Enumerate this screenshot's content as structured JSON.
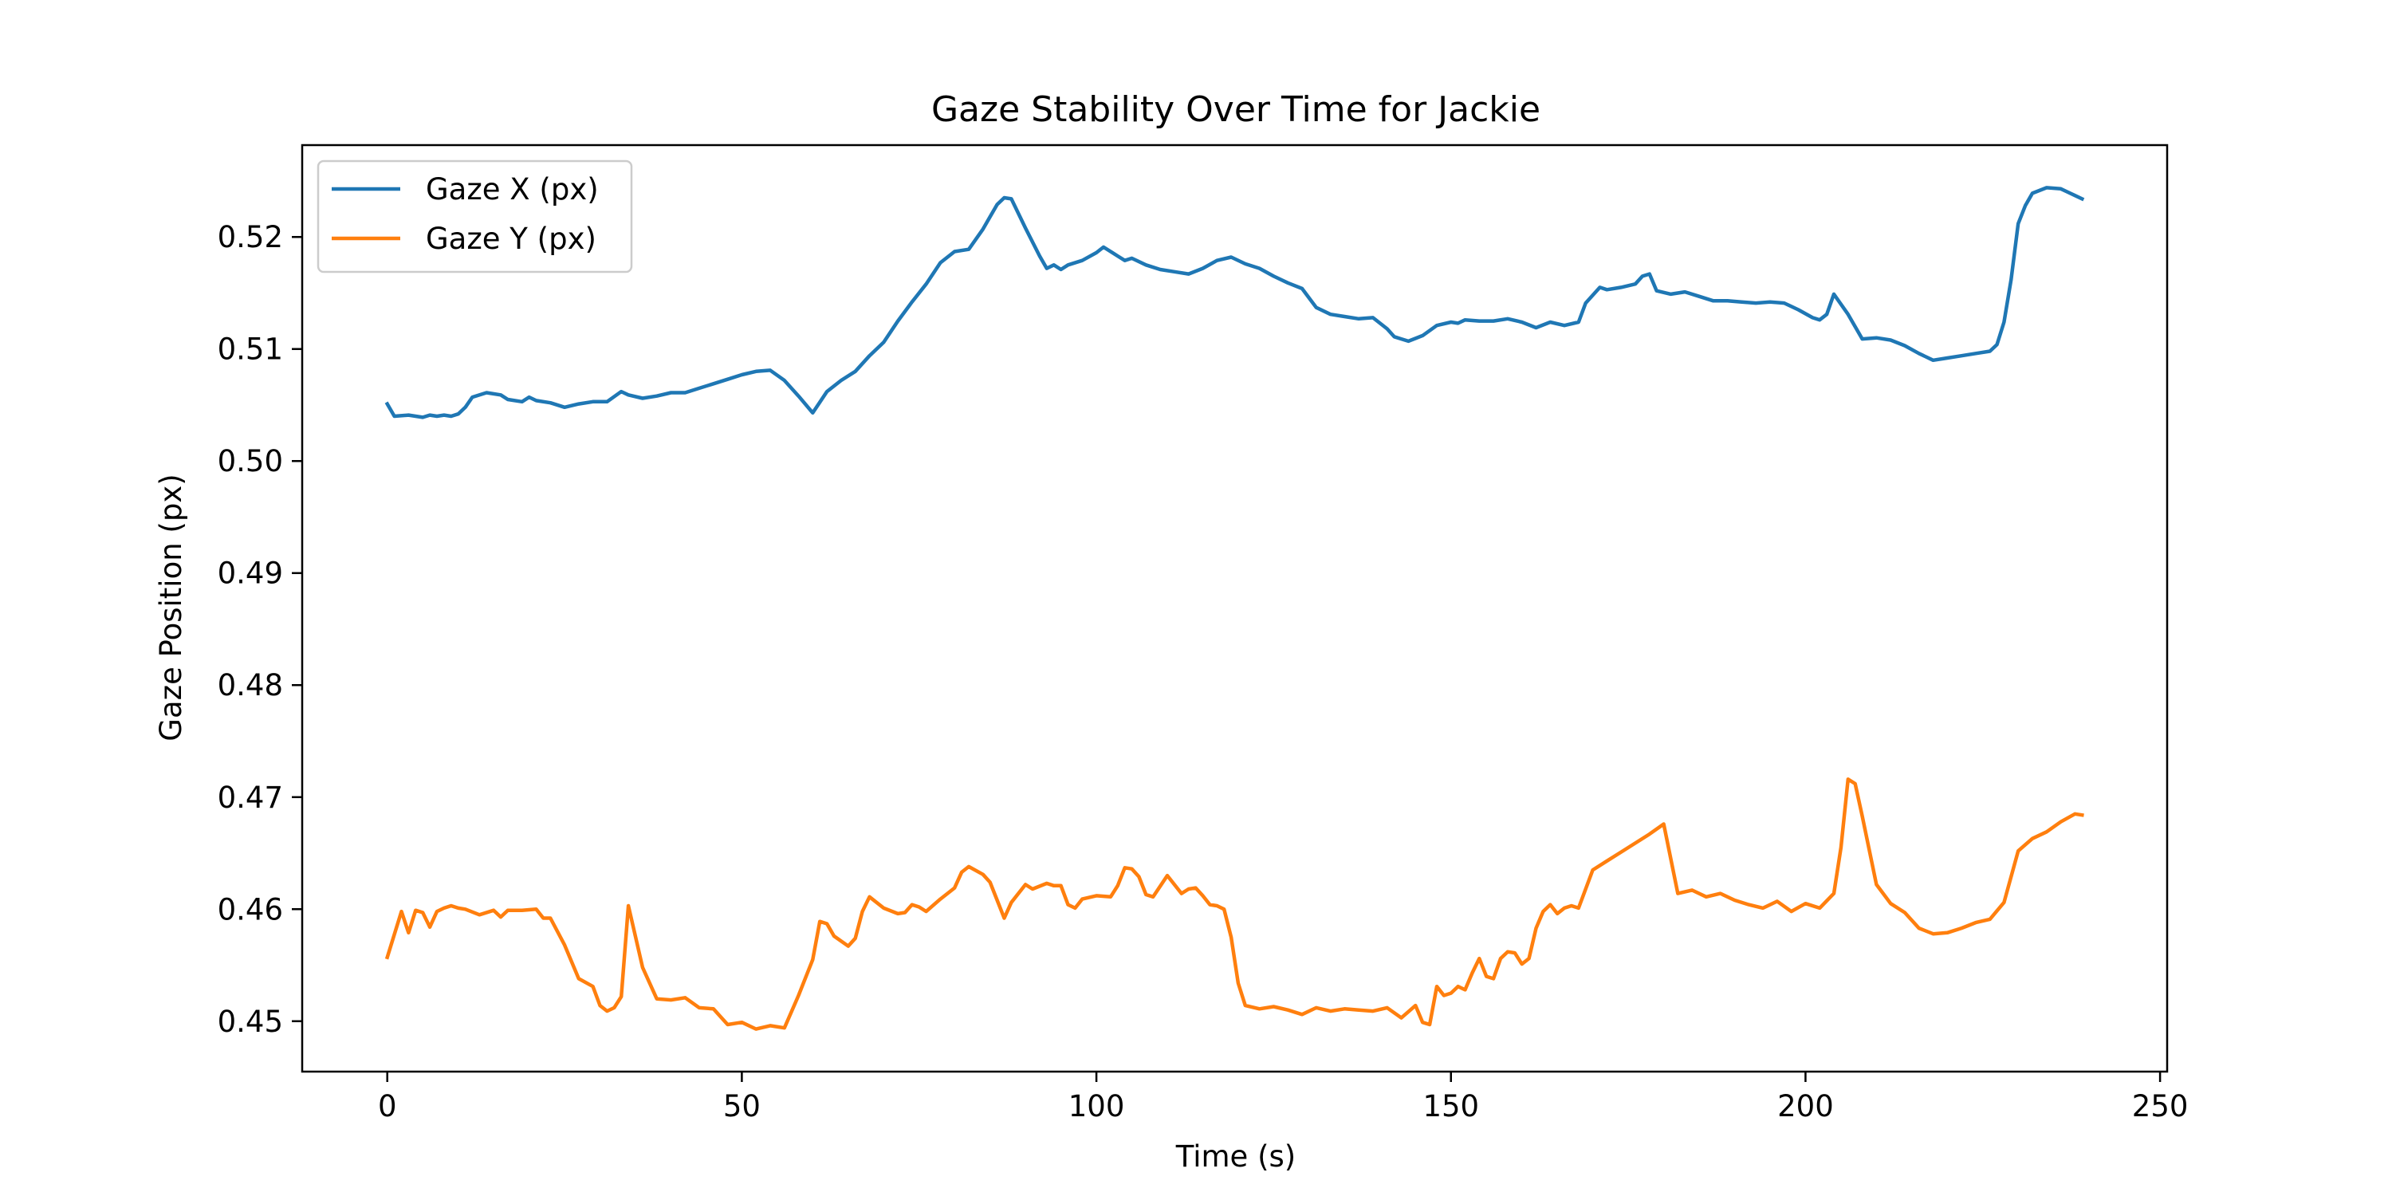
{
  "chart_data": {
    "type": "line",
    "title": "Gaze Stability Over Time for Jackie",
    "xlabel": "Time (s)",
    "ylabel": "Gaze Position (px)",
    "xlim": [
      -12,
      251
    ],
    "ylim": [
      0.4455,
      0.5282
    ],
    "xticks": [
      0,
      50,
      100,
      150,
      200,
      250
    ],
    "yticks": [
      0.45,
      0.46,
      0.47,
      0.48,
      0.49,
      0.5,
      0.51,
      0.52
    ],
    "xtick_labels": [
      "0",
      "50",
      "100",
      "150",
      "200",
      "250"
    ],
    "ytick_labels": [
      "0.45",
      "0.46",
      "0.47",
      "0.48",
      "0.49",
      "0.50",
      "0.51",
      "0.52"
    ],
    "grid": false,
    "legend_position": "upper-left",
    "series": [
      {
        "name": "Gaze X (px)",
        "color": "#1f77b4",
        "x": [
          0,
          1,
          3,
          5,
          6,
          7,
          8,
          9,
          10,
          11,
          12,
          14,
          16,
          17,
          19,
          20,
          21,
          23,
          25,
          27,
          29,
          31,
          33,
          34,
          36,
          38,
          40,
          42,
          44,
          46,
          48,
          50,
          52,
          54,
          56,
          58,
          60,
          62,
          64,
          66,
          68,
          70,
          72,
          74,
          76,
          78,
          80,
          82,
          84,
          85,
          86,
          87,
          88,
          90,
          92,
          93,
          94,
          95,
          96,
          98,
          100,
          101,
          103,
          104,
          105,
          107,
          109,
          111,
          113,
          115,
          117,
          119,
          121,
          123,
          125,
          127,
          129,
          131,
          133,
          135,
          137,
          139,
          141,
          142,
          143,
          144,
          146,
          148,
          150,
          151,
          152,
          154,
          156,
          158,
          160,
          162,
          164,
          166,
          168,
          169,
          171,
          172,
          174,
          176,
          177,
          178,
          179,
          181,
          183,
          185,
          187,
          189,
          191,
          193,
          195,
          197,
          199,
          201,
          202,
          203,
          204,
          206,
          208,
          210,
          212,
          214,
          216,
          218,
          220,
          222,
          224,
          226,
          227,
          228,
          229,
          230,
          231,
          232,
          234,
          236,
          237,
          238,
          239
        ],
        "y": [
          0.5051,
          0.504,
          0.5041,
          0.5039,
          0.5041,
          0.504,
          0.5041,
          0.504,
          0.5042,
          0.5048,
          0.5057,
          0.5061,
          0.5059,
          0.5055,
          0.5053,
          0.5057,
          0.5054,
          0.5052,
          0.5048,
          0.5051,
          0.5053,
          0.5053,
          0.5062,
          0.5059,
          0.5056,
          0.5058,
          0.5061,
          0.5061,
          0.5065,
          0.5069,
          0.5073,
          0.5077,
          0.508,
          0.5081,
          0.5072,
          0.5058,
          0.5043,
          0.5062,
          0.5072,
          0.508,
          0.5094,
          0.5106,
          0.5125,
          0.5142,
          0.5158,
          0.5177,
          0.5187,
          0.5189,
          0.5207,
          0.5218,
          0.5229,
          0.5235,
          0.5234,
          0.5208,
          0.5183,
          0.5172,
          0.5175,
          0.5171,
          0.5175,
          0.5179,
          0.5186,
          0.5191,
          0.5183,
          0.5179,
          0.5181,
          0.5175,
          0.5171,
          0.5169,
          0.5167,
          0.5172,
          0.5179,
          0.5182,
          0.5176,
          0.5172,
          0.5165,
          0.5159,
          0.5154,
          0.5137,
          0.5131,
          0.5129,
          0.5127,
          0.5128,
          0.5118,
          0.5111,
          0.5109,
          0.5107,
          0.5112,
          0.5121,
          0.5124,
          0.5123,
          0.5126,
          0.5125,
          0.5125,
          0.5127,
          0.5124,
          0.5119,
          0.5124,
          0.5121,
          0.5124,
          0.5141,
          0.5155,
          0.5153,
          0.5155,
          0.5158,
          0.5165,
          0.5167,
          0.5152,
          0.5149,
          0.5151,
          0.5147,
          0.5143,
          0.5143,
          0.5142,
          0.5141,
          0.5142,
          0.5141,
          0.5135,
          0.5128,
          0.5126,
          0.5131,
          0.5149,
          0.5131,
          0.5109,
          0.511,
          0.5108,
          0.5103,
          0.5096,
          0.509,
          0.5092,
          0.5094,
          0.5096,
          0.5098,
          0.5104,
          0.5124,
          0.5162,
          0.5212,
          0.5228,
          0.5239,
          0.5244,
          0.5243,
          0.524,
          0.5237,
          0.5234
        ]
      },
      {
        "name": "Gaze Y (px)",
        "color": "#ff7f0e",
        "x": [
          0,
          2,
          3,
          4,
          5,
          6,
          7,
          8,
          9,
          10,
          11,
          13,
          15,
          16,
          17,
          18,
          19,
          21,
          22,
          23,
          25,
          27,
          29,
          30,
          31,
          32,
          33,
          34,
          36,
          38,
          40,
          42,
          44,
          46,
          48,
          50,
          52,
          54,
          56,
          58,
          60,
          61,
          62,
          63,
          65,
          66,
          67,
          68,
          70,
          72,
          73,
          74,
          75,
          76,
          78,
          80,
          81,
          82,
          84,
          85,
          86,
          87,
          88,
          90,
          91,
          93,
          94,
          95,
          96,
          97,
          98,
          100,
          102,
          103,
          104,
          105,
          106,
          107,
          108,
          110,
          111,
          112,
          113,
          114,
          115,
          116,
          117,
          118,
          119,
          120,
          121,
          123,
          125,
          127,
          129,
          131,
          133,
          135,
          137,
          139,
          141,
          143,
          145,
          146,
          147,
          148,
          149,
          150,
          151,
          152,
          153,
          154,
          155,
          156,
          157,
          158,
          159,
          160,
          161,
          162,
          163,
          164,
          165,
          166,
          167,
          168,
          170,
          172,
          174,
          176,
          178,
          180,
          182,
          184,
          186,
          188,
          190,
          192,
          194,
          196,
          198,
          200,
          202,
          204,
          205,
          206,
          207,
          208,
          210,
          212,
          214,
          216,
          218,
          220,
          222,
          224,
          226,
          228,
          230,
          232,
          234,
          236,
          238,
          239
        ],
        "y": [
          0.4557,
          0.4598,
          0.4579,
          0.4599,
          0.4597,
          0.4584,
          0.4598,
          0.4601,
          0.4603,
          0.4601,
          0.46,
          0.4595,
          0.4599,
          0.4593,
          0.4599,
          0.4599,
          0.4599,
          0.46,
          0.4592,
          0.4592,
          0.4568,
          0.4538,
          0.4531,
          0.4514,
          0.4509,
          0.4512,
          0.4522,
          0.4603,
          0.4548,
          0.452,
          0.4519,
          0.4521,
          0.4512,
          0.4511,
          0.4497,
          0.4499,
          0.4493,
          0.4496,
          0.4494,
          0.4523,
          0.4555,
          0.4589,
          0.4587,
          0.4576,
          0.4567,
          0.4574,
          0.4598,
          0.4611,
          0.4601,
          0.4596,
          0.4597,
          0.4604,
          0.4602,
          0.4598,
          0.4609,
          0.4619,
          0.4633,
          0.4638,
          0.4631,
          0.4624,
          0.4608,
          0.4592,
          0.4606,
          0.4622,
          0.4618,
          0.4623,
          0.4621,
          0.4621,
          0.4604,
          0.4601,
          0.4609,
          0.4612,
          0.4611,
          0.4621,
          0.4637,
          0.4636,
          0.4629,
          0.4613,
          0.4611,
          0.463,
          0.4622,
          0.4614,
          0.4618,
          0.4619,
          0.4612,
          0.4604,
          0.4603,
          0.46,
          0.4575,
          0.4534,
          0.4514,
          0.4511,
          0.4513,
          0.451,
          0.4506,
          0.4512,
          0.4509,
          0.4511,
          0.451,
          0.4509,
          0.4512,
          0.4503,
          0.4514,
          0.4499,
          0.4497,
          0.4531,
          0.4523,
          0.4525,
          0.4531,
          0.4528,
          0.4543,
          0.4556,
          0.454,
          0.4538,
          0.4556,
          0.4562,
          0.4561,
          0.4551,
          0.4556,
          0.4583,
          0.4598,
          0.4604,
          0.4596,
          0.4601,
          0.4603,
          0.4601,
          0.4635,
          0.4643,
          0.4651,
          0.4659,
          0.4667,
          0.4676,
          0.4614,
          0.4617,
          0.4611,
          0.4614,
          0.4608,
          0.4604,
          0.4601,
          0.4607,
          0.4598,
          0.4605,
          0.4601,
          0.4614,
          0.4655,
          0.4716,
          0.4712,
          0.4683,
          0.4622,
          0.4605,
          0.4597,
          0.4583,
          0.4578,
          0.4579,
          0.4583,
          0.4588,
          0.4591,
          0.4606,
          0.4652,
          0.4663,
          0.4669,
          0.4678,
          0.4685,
          0.4684
        ]
      }
    ]
  }
}
